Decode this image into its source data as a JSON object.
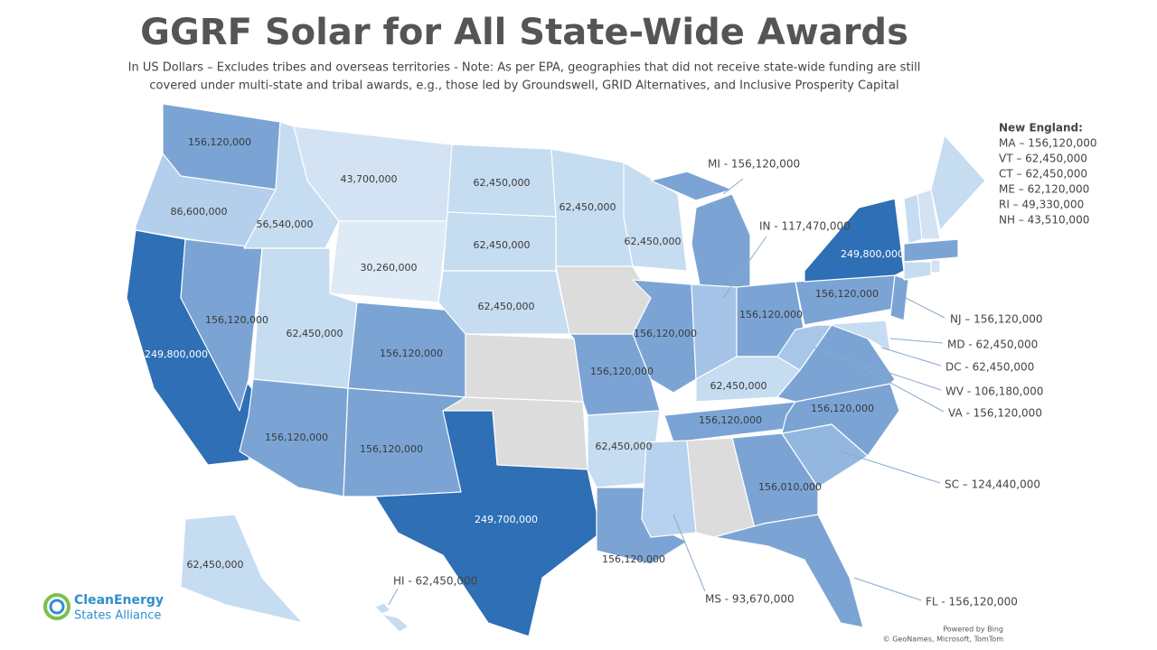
{
  "header": {
    "title": "GGRF Solar for All State-Wide Awards",
    "subtitle_lines": [
      "In US Dollars – Excludes tribes and overseas territories - Note: As per EPA, geographies that did not receive state-wide funding are still",
      "covered under multi-state and tribal awards, e.g., those led by Groundswell, GRID Alternatives, and Inclusive Prosperity Capital"
    ]
  },
  "map": {
    "regions": [
      {
        "color": "#7ba4d5",
        "label": "156,120,000"
      },
      {
        "color": "#b3cfec",
        "label": "86,600,000"
      },
      {
        "color": "#2e6fb6",
        "label": "249,800,000"
      },
      {
        "color": "#7ba4d5",
        "label": "156,120,000"
      },
      {
        "color": "#c6dcf0",
        "label": "56,540,000"
      },
      {
        "color": "#d3e3f3",
        "label": "43,700,000"
      },
      {
        "color": "#deeaf6",
        "label": "30,260,000"
      },
      {
        "color": "#c6dcf0",
        "label": "62,450,000"
      },
      {
        "color": "#7ba4d5",
        "label": "156,120,000"
      },
      {
        "color": "#7ba4d5",
        "label": "156,120,000"
      },
      {
        "color": "#7ba4d5",
        "label": "156,120,000"
      },
      {
        "color": "#c6dcf0",
        "label": "62,450,000"
      },
      {
        "color": "#c6dcf0",
        "label": "62,450,000"
      },
      {
        "color": "#c6dcf0",
        "label": "62,450,000"
      },
      {
        "color": "#dcdcdc"
      },
      {
        "color": "#dcdcdc"
      },
      {
        "color": "#2e6fb6",
        "label": "249,700,000"
      },
      {
        "color": "#c6dcf0",
        "label": "62,450,000"
      },
      {
        "color": "#dcdcdc"
      },
      {
        "color": "#7ba4d5",
        "label": "156,120,000"
      },
      {
        "color": "#c6dcf0",
        "label": "62,450,000"
      },
      {
        "color": "#7ba4d5",
        "label": "156,120,000"
      },
      {
        "color": "#c6dcf0",
        "label": "62,450,000"
      },
      {
        "color": "#7ba4d5",
        "label": "156,120,000"
      },
      {
        "color": "#7ba4d5"
      },
      {
        "color": "#7ba4d5"
      },
      {
        "color": "#a4c3e6"
      },
      {
        "color": "#7ba4d5",
        "label": "156,120,000"
      },
      {
        "color": "#c6dcf0",
        "label": "62,450,000"
      },
      {
        "color": "#7ba4d5",
        "label": "156,120,000"
      },
      {
        "color": "#b7d2ee"
      },
      {
        "color": "#dcdcdc"
      },
      {
        "color": "#7ba4d5",
        "label": "156,010,000"
      },
      {
        "color": "#7ba4d5"
      },
      {
        "color": "#94b7e0"
      },
      {
        "color": "#7ba4d5",
        "label": "156,120,000"
      },
      {
        "color": "#7ba4d5"
      },
      {
        "color": "#a8c6e8"
      },
      {
        "color": "#7ba4d5",
        "label": "156,120,000"
      },
      {
        "color": "#2e6fb6",
        "label": "249,800,000"
      },
      {
        "color": "#7ba4d5"
      },
      {
        "color": "#c6dcf0"
      },
      {
        "color": "#c6dcf0"
      },
      {
        "color": "#d3e3f3"
      },
      {
        "color": "#c6dcf0"
      },
      {
        "color": "#7ba4d5"
      },
      {
        "color": "#c6dcf0"
      },
      {
        "color": "#d3e3f3"
      },
      {
        "color": "#c6dcf0",
        "label": "62,450,000"
      },
      {
        "color": "#c6dcf0"
      }
    ],
    "callouts": [
      "MI - 156,120,000",
      "IN - 117,470,000",
      "NJ – 156,120,000",
      "MD - 62,450,000",
      "DC - 62,450,000",
      "WV - 106,180,000",
      "VA - 156,120,000",
      "SC – 124,440,000",
      "FL - 156,120,000",
      "MS - 93,670,000",
      "HI - 62,450,000"
    ]
  },
  "new_england": {
    "heading": "New England:",
    "items": [
      "MA – 156,120,000",
      "VT – 62,450,000",
      "CT – 62,450,000",
      "ME – 62,120,000",
      "RI – 49,330,000",
      "NH – 43,510,000"
    ]
  },
  "logo": {
    "line1": "CleanEnergy",
    "line2": "States Alliance"
  },
  "credits": [
    "Powered by Bing",
    "© GeoNames, Microsoft, TomTom"
  ]
}
